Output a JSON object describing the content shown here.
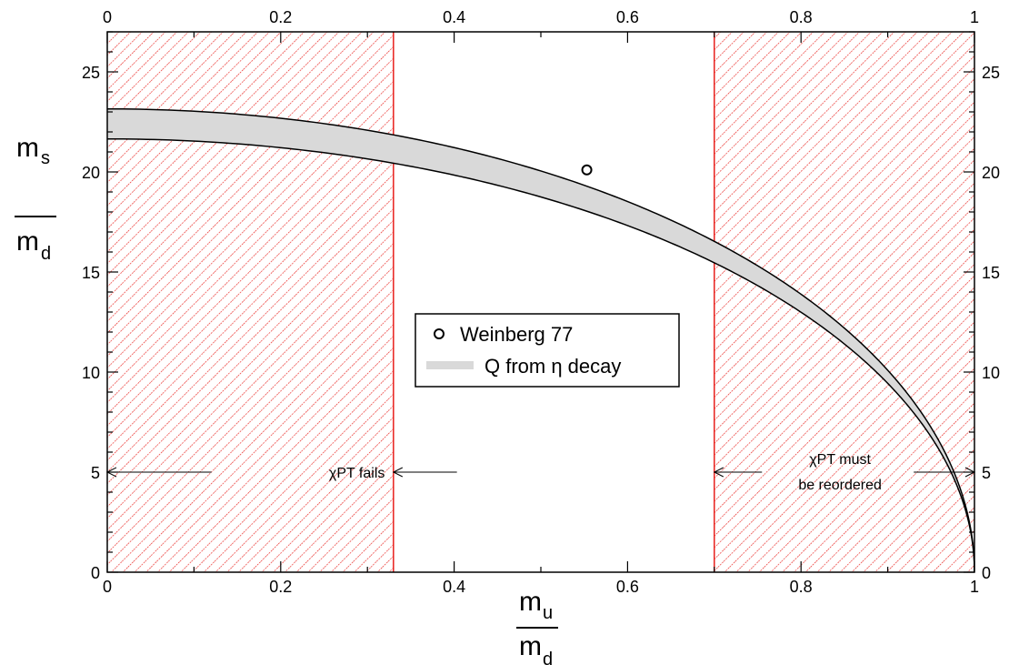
{
  "chart_data": {
    "type": "area",
    "x_axis": {
      "min": 0,
      "max": 1,
      "ticks": [
        "0",
        "0.2",
        "0.4",
        "0.6",
        "0.8",
        "1"
      ],
      "label_numerator": "m",
      "label_numerator_sub": "u",
      "label_denominator": "m",
      "label_denominator_sub": "d"
    },
    "y_axis": {
      "min": 0,
      "max": 27,
      "ticks": [
        "0",
        "5",
        "10",
        "15",
        "20",
        "25"
      ],
      "label_numerator": "m",
      "label_numerator_sub": "s",
      "label_denominator": "m",
      "label_denominator_sub": "d"
    },
    "top_ticks": [
      "0",
      "0.2",
      "0.4",
      "0.6",
      "0.8",
      "1"
    ],
    "right_ticks": [
      "0",
      "5",
      "10",
      "15",
      "20",
      "25"
    ],
    "excluded_regions": [
      {
        "x_from": 0,
        "x_to": 0.33,
        "label": "χPT fails",
        "color": "#e8201c"
      },
      {
        "x_from": 0.7,
        "x_to": 1.0,
        "label_line1": "χPT must",
        "label_line2": "be reordered",
        "color": "#e8201c"
      }
    ],
    "band": {
      "name": "Q from η decay",
      "color": "#d9d9d9",
      "q_upper": 23.15,
      "q_lower": 21.65
    },
    "points": [
      {
        "name": "Weinberg 77",
        "x": 0.553,
        "y": 20.1
      }
    ],
    "legend": {
      "placement": "center",
      "entries": [
        "Weinberg 77",
        "Q from η decay"
      ]
    }
  }
}
